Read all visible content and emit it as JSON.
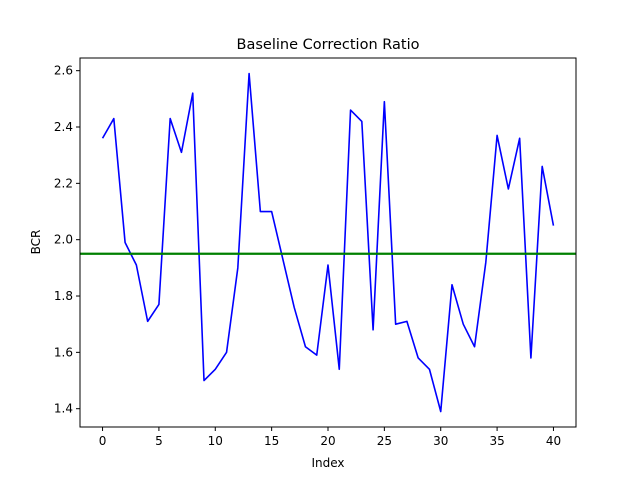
{
  "chart_data": {
    "type": "line",
    "title": "Baseline Correction Ratio",
    "xlabel": "Index",
    "ylabel": "BCR",
    "xlim": [
      -2,
      42
    ],
    "ylim": [
      1.335,
      2.645
    ],
    "xticks": [
      0,
      5,
      10,
      15,
      20,
      25,
      30,
      35,
      40
    ],
    "yticks": [
      1.4,
      1.6,
      1.8,
      2.0,
      2.2,
      2.4,
      2.6
    ],
    "grid": false,
    "legend": "none",
    "series": [
      {
        "color": "#0000ff",
        "x": [
          0,
          1,
          2,
          3,
          4,
          5,
          6,
          7,
          8,
          9,
          10,
          11,
          12,
          13,
          14,
          15,
          16,
          17,
          18,
          19,
          20,
          21,
          22,
          23,
          24,
          25,
          26,
          27,
          28,
          29,
          30,
          31,
          32,
          33,
          34,
          35,
          36,
          37,
          38,
          39,
          40
        ],
        "values": [
          2.36,
          2.43,
          1.99,
          1.91,
          1.71,
          1.77,
          2.43,
          2.31,
          2.52,
          1.5,
          1.54,
          1.6,
          1.9,
          2.59,
          2.1,
          2.1,
          1.93,
          1.76,
          1.62,
          1.59,
          1.91,
          1.54,
          2.46,
          2.42,
          1.68,
          2.49,
          1.7,
          1.71,
          1.58,
          1.54,
          1.39,
          1.84,
          1.7,
          1.62,
          1.92,
          2.37,
          2.18,
          2.36,
          1.58,
          2.26,
          2.05
        ]
      }
    ],
    "reference_line": {
      "y": 1.95,
      "color": "#008000"
    }
  }
}
